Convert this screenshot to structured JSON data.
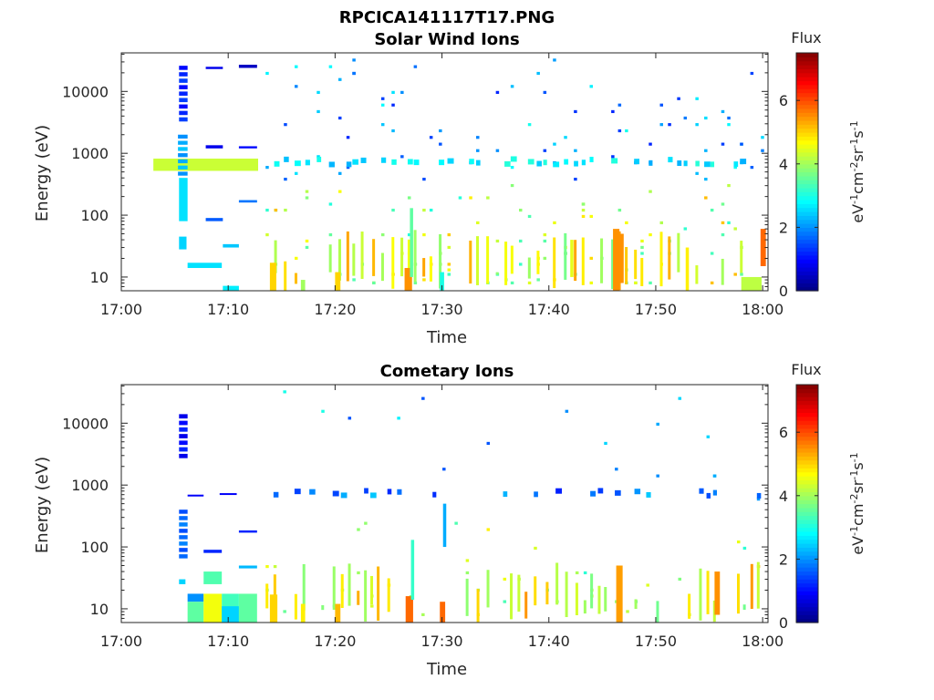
{
  "figure_title": "RPCICA141117T17.PNG",
  "chart_data": [
    {
      "type": "heatmap",
      "title": "Solar Wind Ions",
      "xlabel": "Time",
      "ylabel": "Energy (eV)",
      "x_ticks": [
        "17:00",
        "17:10",
        "17:20",
        "17:30",
        "17:40",
        "17:50",
        "18:00"
      ],
      "xlim_minutes_after_1700": [
        0,
        60.5
      ],
      "y_scale": "log",
      "y_ticks": [
        {
          "value": 10,
          "label": "10"
        },
        {
          "value": 100,
          "label": "100"
        },
        {
          "value": 1000,
          "label": "1000"
        },
        {
          "value": 10000,
          "label": "10000"
        }
      ],
      "ylim": [
        6,
        42000
      ],
      "colorbar": {
        "label": "Flux",
        "unit_prefix": "eV",
        "unit_exp1": "-1",
        "unit_mid1": "cm",
        "unit_exp2": "-2",
        "unit_mid2": "sr",
        "unit_exp3": "-1",
        "unit_mid3": "s",
        "unit_exp4": "-1",
        "ticks": [
          "0",
          "2",
          "4",
          "6"
        ],
        "clim": [
          0,
          7.5
        ],
        "colormap": "jet"
      },
      "cells": [
        {
          "t0": 3.0,
          "t1": 12.8,
          "e0": 520,
          "e1": 820,
          "v": 4.3
        },
        {
          "t0": 5.3,
          "t1": 6.2,
          "e0": 400,
          "e1": 2000,
          "v": 2.0
        },
        {
          "t0": 5.4,
          "t1": 6.2,
          "e0": 3000,
          "e1": 26000,
          "v": 1.0
        },
        {
          "t0": 5.4,
          "t1": 6.2,
          "e0": 80,
          "e1": 400,
          "v": 2.6
        },
        {
          "t0": 5.4,
          "t1": 6.1,
          "e0": 28,
          "e1": 45,
          "v": 2.5
        },
        {
          "t0": 6.2,
          "t1": 9.4,
          "e0": 14,
          "e1": 17,
          "v": 2.6
        },
        {
          "t0": 7.9,
          "t1": 9.5,
          "e0": 80,
          "e1": 90,
          "v": 1.6
        },
        {
          "t0": 7.9,
          "t1": 9.5,
          "e0": 1200,
          "e1": 1350,
          "v": 0.8
        },
        {
          "t0": 7.9,
          "t1": 9.5,
          "e0": 23000,
          "e1": 25000,
          "v": 0.8
        },
        {
          "t0": 9.5,
          "t1": 11.0,
          "e0": 30,
          "e1": 34,
          "v": 2.4
        },
        {
          "t0": 9.5,
          "t1": 11.0,
          "e0": 6,
          "e1": 7.2,
          "v": 2.7
        },
        {
          "t0": 11.0,
          "t1": 12.7,
          "e0": 1200,
          "e1": 1300,
          "v": 1.0
        },
        {
          "t0": 11.0,
          "t1": 12.7,
          "e0": 160,
          "e1": 175,
          "v": 1.8
        },
        {
          "t0": 11.0,
          "t1": 12.7,
          "e0": 24000,
          "e1": 27000,
          "v": 0.5
        },
        {
          "t0": 13.9,
          "t1": 14.5,
          "e0": 6,
          "e1": 17,
          "v": 5.0
        },
        {
          "t0": 16.8,
          "t1": 17.2,
          "e0": 6,
          "e1": 9,
          "v": 4.0
        },
        {
          "t0": 20.0,
          "t1": 20.5,
          "e0": 6,
          "e1": 12,
          "v": 5.0
        },
        {
          "t0": 26.5,
          "t1": 27.2,
          "e0": 6,
          "e1": 14,
          "v": 5.5
        },
        {
          "t0": 27.0,
          "t1": 27.3,
          "e0": 10,
          "e1": 130,
          "v": 3.5
        },
        {
          "t0": 29.8,
          "t1": 30.2,
          "e0": 6,
          "e1": 12,
          "v": 3.0
        },
        {
          "t0": 42.0,
          "t1": 42.3,
          "e0": 10,
          "e1": 40,
          "v": 4.5
        },
        {
          "t0": 46.0,
          "t1": 46.6,
          "e0": 6,
          "e1": 60,
          "v": 5.5
        },
        {
          "t0": 46.6,
          "t1": 47.0,
          "e0": 8,
          "e1": 50,
          "v": 5.5
        },
        {
          "t0": 52.8,
          "t1": 53.1,
          "e0": 6,
          "e1": 30,
          "v": 4.8
        },
        {
          "t0": 59.8,
          "t1": 60.3,
          "e0": 15,
          "e1": 60,
          "v": 5.8
        },
        {
          "t0": 58.0,
          "t1": 59.9,
          "e0": 6,
          "e1": 10,
          "v": 4.2
        }
      ],
      "scatter_seed": 7
    },
    {
      "type": "heatmap",
      "title": "Cometary Ions",
      "xlabel": "Time",
      "ylabel": "Energy (eV)",
      "x_ticks": [
        "17:00",
        "17:10",
        "17:20",
        "17:30",
        "17:40",
        "17:50",
        "18:00"
      ],
      "xlim_minutes_after_1700": [
        0,
        60.5
      ],
      "y_scale": "log",
      "y_ticks": [
        {
          "value": 10,
          "label": "10"
        },
        {
          "value": 100,
          "label": "100"
        },
        {
          "value": 1000,
          "label": "1000"
        },
        {
          "value": 10000,
          "label": "10000"
        }
      ],
      "ylim": [
        6,
        42000
      ],
      "colorbar": {
        "label": "Flux",
        "unit_prefix": "eV",
        "unit_exp1": "-1",
        "unit_mid1": "cm",
        "unit_exp2": "-2",
        "unit_mid2": "sr",
        "unit_exp3": "-1",
        "unit_mid3": "s",
        "unit_exp4": "-1",
        "ticks": [
          "0",
          "2",
          "4",
          "6"
        ],
        "clim": [
          0,
          7.5
        ],
        "colormap": "jet"
      },
      "cells": [
        {
          "t0": 5.4,
          "t1": 6.2,
          "e0": 2500,
          "e1": 14000,
          "v": 0.8
        },
        {
          "t0": 5.4,
          "t1": 6.2,
          "e0": 60,
          "e1": 400,
          "v": 1.5
        },
        {
          "t0": 5.4,
          "t1": 6.0,
          "e0": 25,
          "e1": 30,
          "v": 2.5
        },
        {
          "t0": 6.2,
          "t1": 7.7,
          "e0": 13,
          "e1": 17.5,
          "v": 2.0
        },
        {
          "t0": 6.2,
          "t1": 7.7,
          "e0": 6,
          "e1": 13,
          "v": 3.5
        },
        {
          "t0": 7.7,
          "t1": 9.4,
          "e0": 6,
          "e1": 17.5,
          "v": 4.6
        },
        {
          "t0": 7.7,
          "t1": 9.4,
          "e0": 25,
          "e1": 40,
          "v": 3.4
        },
        {
          "t0": 7.7,
          "t1": 9.4,
          "e0": 80,
          "e1": 90,
          "v": 1.2
        },
        {
          "t0": 9.4,
          "t1": 11.0,
          "e0": 6,
          "e1": 17.5,
          "v": 3.3
        },
        {
          "t0": 9.4,
          "t1": 11.0,
          "e0": 6,
          "e1": 11,
          "v": 2.5
        },
        {
          "t0": 11.0,
          "t1": 12.7,
          "e0": 6,
          "e1": 17.5,
          "v": 3.5
        },
        {
          "t0": 11.0,
          "t1": 12.7,
          "e0": 170,
          "e1": 185,
          "v": 1.2
        },
        {
          "t0": 11.0,
          "t1": 12.7,
          "e0": 45,
          "e1": 50,
          "v": 2.3
        },
        {
          "t0": 6.2,
          "t1": 7.7,
          "e0": 660,
          "e1": 700,
          "v": 0.9
        },
        {
          "t0": 9.2,
          "t1": 10.8,
          "e0": 700,
          "e1": 740,
          "v": 0.9
        },
        {
          "t0": 13.9,
          "t1": 14.6,
          "e0": 6,
          "e1": 17,
          "v": 5.0
        },
        {
          "t0": 16.8,
          "t1": 17.2,
          "e0": 6,
          "e1": 12,
          "v": 4.8
        },
        {
          "t0": 20.0,
          "t1": 20.5,
          "e0": 6,
          "e1": 12,
          "v": 5.2
        },
        {
          "t0": 26.6,
          "t1": 27.3,
          "e0": 6,
          "e1": 16,
          "v": 5.8
        },
        {
          "t0": 29.8,
          "t1": 30.3,
          "e0": 6,
          "e1": 13,
          "v": 5.8
        },
        {
          "t0": 27.1,
          "t1": 27.4,
          "e0": 14,
          "e1": 130,
          "v": 3.2
        },
        {
          "t0": 30.1,
          "t1": 30.4,
          "e0": 100,
          "e1": 500,
          "v": 2.2
        },
        {
          "t0": 46.3,
          "t1": 46.9,
          "e0": 6,
          "e1": 50,
          "v": 5.4
        },
        {
          "t0": 55.5,
          "t1": 56.0,
          "e0": 8,
          "e1": 40,
          "v": 5.5
        }
      ],
      "scatter_seed": 13
    }
  ]
}
